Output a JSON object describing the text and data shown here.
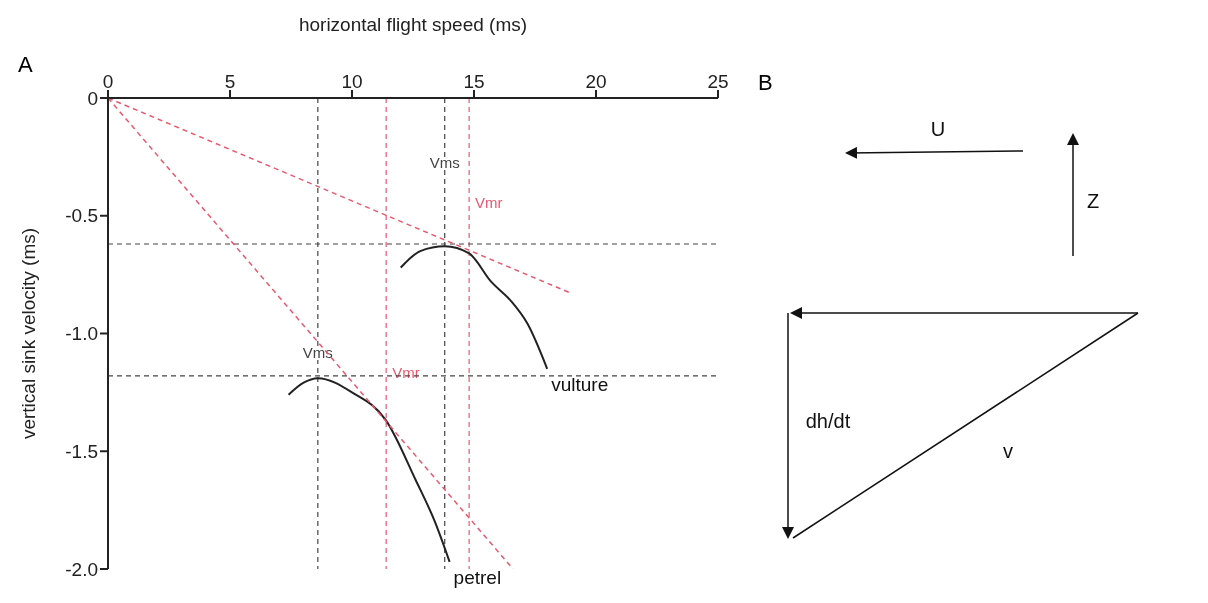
{
  "chart_data": [
    {
      "type": "line",
      "title": "A",
      "xlabel": "horizontal flight speed (ms)",
      "ylabel": "vertical sink velocity (ms)",
      "xlim": [
        0,
        25
      ],
      "xticks": [
        0,
        5,
        10,
        15,
        20,
        25
      ],
      "ylim": [
        -2.0,
        0
      ],
      "yticks": [
        0,
        -0.5,
        {
          "value": -1,
          "label": "-1.0"
        },
        -1.5,
        {
          "value": -2,
          "label": "-2.0"
        }
      ],
      "marker": "none",
      "series": [
        {
          "name": "vulture",
          "color": "#222222",
          "x": [
            12.0,
            12.8,
            13.8,
            14.8,
            15.7,
            16.5,
            17.2,
            18.0
          ],
          "values": [
            -0.72,
            -0.65,
            -0.63,
            -0.66,
            -0.78,
            -0.86,
            -0.96,
            -1.15
          ]
        },
        {
          "name": "petrel",
          "color": "#222222",
          "x": [
            7.4,
            8.0,
            8.6,
            10.0,
            11.4,
            12.6,
            13.4,
            14.0
          ],
          "values": [
            -1.26,
            -1.21,
            -1.19,
            -1.25,
            -1.37,
            -1.62,
            -1.8,
            -1.97
          ]
        },
        {
          "type": "line",
          "color": "#e8596e",
          "line_style": "dashed",
          "x": [
            0,
            19.0
          ],
          "values": [
            0,
            -0.83
          ]
        },
        {
          "type": "line",
          "color": "#e8596e",
          "line_style": "dashed",
          "x": [
            0,
            16.6
          ],
          "values": [
            0,
            -2.0
          ]
        }
      ],
      "ref_lines": [
        {
          "axis": "x",
          "value": 8.6,
          "label": "Vms",
          "color": "#444444",
          "line_style": "dashed"
        },
        {
          "axis": "x",
          "value": 13.8,
          "label": "Vms",
          "color": "#444444",
          "line_style": "dashed"
        },
        {
          "axis": "x",
          "value": 11.4,
          "label": "Vmr",
          "color": "#e8596e",
          "line_style": "dashed"
        },
        {
          "axis": "x",
          "value": 14.8,
          "label": "Vmr",
          "color": "#e8596e",
          "line_style": "dashed"
        },
        {
          "axis": "y",
          "value": -0.62,
          "color": "#444444",
          "line_style": "dashed"
        },
        {
          "axis": "y",
          "value": -1.18,
          "color": "#444444",
          "line_style": "dashed"
        }
      ]
    },
    {
      "type": "other",
      "title": "B",
      "annotations": [
        "U",
        "Z",
        "dh/dt",
        "v"
      ]
    }
  ]
}
